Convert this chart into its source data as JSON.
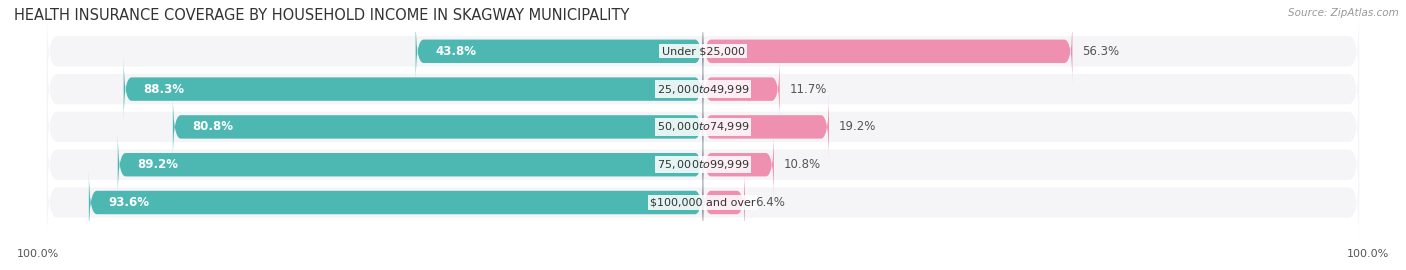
{
  "title": "HEALTH INSURANCE COVERAGE BY HOUSEHOLD INCOME IN SKAGWAY MUNICIPALITY",
  "source": "Source: ZipAtlas.com",
  "categories": [
    "Under $25,000",
    "$25,000 to $49,999",
    "$50,000 to $74,999",
    "$75,000 to $99,999",
    "$100,000 and over"
  ],
  "with_coverage": [
    43.8,
    88.3,
    80.8,
    89.2,
    93.6
  ],
  "without_coverage": [
    56.3,
    11.7,
    19.2,
    10.8,
    6.4
  ],
  "color_with": "#4db8b2",
  "color_without": "#f090b0",
  "bar_bg": "#e8e8ec",
  "row_bg": "#f5f5f7",
  "title_fontsize": 10.5,
  "label_fontsize": 8.5,
  "legend_fontsize": 8.5,
  "source_fontsize": 7.5
}
